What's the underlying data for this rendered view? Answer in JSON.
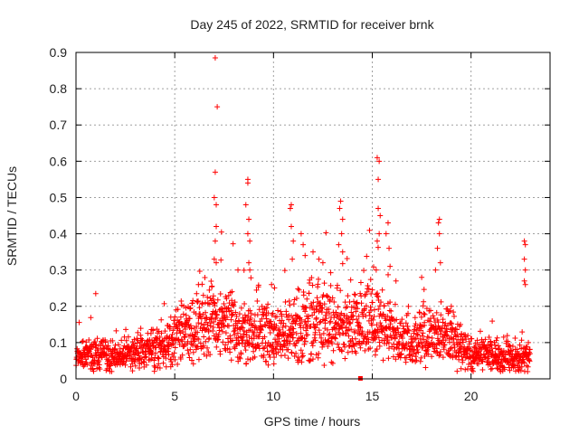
{
  "chart_data": {
    "type": "scatter",
    "title": "Day 245 of 2022, SRMTID for receiver brnk",
    "xlabel": "GPS time / hours",
    "ylabel": "SRMTID / TECUs",
    "xlim": [
      0,
      24
    ],
    "ylim": [
      0,
      0.9
    ],
    "x_ticks": [
      0,
      5,
      10,
      15,
      20
    ],
    "x_tick_labels": [
      "0",
      "5",
      "10",
      "15",
      "20"
    ],
    "y_ticks": [
      0,
      0.1,
      0.2,
      0.3,
      0.4,
      0.5,
      0.6,
      0.7,
      0.8,
      0.9
    ],
    "y_tick_labels": [
      "0",
      "0.1",
      "0.2",
      "0.3",
      "0.4",
      "0.5",
      "0.6",
      "0.7",
      "0.8",
      "0.9"
    ],
    "grid": true,
    "marker": "plus",
    "series_color": "#ff0000",
    "baseline_profile": [
      [
        0.0,
        0.07
      ],
      [
        1.0,
        0.06
      ],
      [
        2.0,
        0.055
      ],
      [
        3.0,
        0.065
      ],
      [
        4.0,
        0.08
      ],
      [
        4.8,
        0.09
      ],
      [
        5.3,
        0.12
      ],
      [
        6.0,
        0.14
      ],
      [
        7.0,
        0.15
      ],
      [
        8.0,
        0.13
      ],
      [
        9.0,
        0.12
      ],
      [
        10.0,
        0.11
      ],
      [
        11.0,
        0.13
      ],
      [
        12.0,
        0.16
      ],
      [
        13.0,
        0.14
      ],
      [
        14.0,
        0.13
      ],
      [
        15.0,
        0.15
      ],
      [
        16.0,
        0.11
      ],
      [
        17.0,
        0.09
      ],
      [
        18.0,
        0.12
      ],
      [
        19.0,
        0.1
      ],
      [
        20.0,
        0.06
      ],
      [
        21.0,
        0.06
      ],
      [
        22.0,
        0.055
      ],
      [
        23.0,
        0.06
      ]
    ],
    "spikes": [
      {
        "x": 7.05,
        "y": 0.885
      },
      {
        "x": 7.15,
        "y": 0.75
      },
      {
        "x": 7.05,
        "y": 0.57
      },
      {
        "x": 7.0,
        "y": 0.5
      },
      {
        "x": 7.1,
        "y": 0.48
      },
      {
        "x": 7.1,
        "y": 0.42
      },
      {
        "x": 7.05,
        "y": 0.38
      },
      {
        "x": 7.0,
        "y": 0.33
      },
      {
        "x": 7.1,
        "y": 0.32
      },
      {
        "x": 8.7,
        "y": 0.55
      },
      {
        "x": 8.7,
        "y": 0.54
      },
      {
        "x": 8.6,
        "y": 0.48
      },
      {
        "x": 8.75,
        "y": 0.44
      },
      {
        "x": 8.7,
        "y": 0.4
      },
      {
        "x": 8.8,
        "y": 0.38
      },
      {
        "x": 8.75,
        "y": 0.32
      },
      {
        "x": 8.8,
        "y": 0.3
      },
      {
        "x": 10.9,
        "y": 0.48
      },
      {
        "x": 10.85,
        "y": 0.47
      },
      {
        "x": 10.9,
        "y": 0.42
      },
      {
        "x": 11.0,
        "y": 0.38
      },
      {
        "x": 10.95,
        "y": 0.33
      },
      {
        "x": 11.4,
        "y": 0.4
      },
      {
        "x": 11.5,
        "y": 0.37
      },
      {
        "x": 11.6,
        "y": 0.34
      },
      {
        "x": 13.4,
        "y": 0.49
      },
      {
        "x": 13.35,
        "y": 0.47
      },
      {
        "x": 13.5,
        "y": 0.44
      },
      {
        "x": 13.45,
        "y": 0.4
      },
      {
        "x": 13.3,
        "y": 0.37
      },
      {
        "x": 13.5,
        "y": 0.35
      },
      {
        "x": 15.25,
        "y": 0.61
      },
      {
        "x": 15.35,
        "y": 0.6
      },
      {
        "x": 15.3,
        "y": 0.55
      },
      {
        "x": 15.3,
        "y": 0.47
      },
      {
        "x": 15.4,
        "y": 0.45
      },
      {
        "x": 15.35,
        "y": 0.4
      },
      {
        "x": 15.25,
        "y": 0.38
      },
      {
        "x": 15.8,
        "y": 0.43
      },
      {
        "x": 15.7,
        "y": 0.4
      },
      {
        "x": 15.85,
        "y": 0.36
      },
      {
        "x": 15.2,
        "y": 0.3
      },
      {
        "x": 15.9,
        "y": 0.31
      },
      {
        "x": 18.4,
        "y": 0.44
      },
      {
        "x": 18.35,
        "y": 0.43
      },
      {
        "x": 18.4,
        "y": 0.4
      },
      {
        "x": 18.3,
        "y": 0.36
      },
      {
        "x": 18.45,
        "y": 0.32
      },
      {
        "x": 18.2,
        "y": 0.3
      },
      {
        "x": 22.7,
        "y": 0.38
      },
      {
        "x": 22.75,
        "y": 0.37
      },
      {
        "x": 22.7,
        "y": 0.33
      },
      {
        "x": 22.75,
        "y": 0.3
      },
      {
        "x": 22.7,
        "y": 0.27
      },
      {
        "x": 22.75,
        "y": 0.26
      },
      {
        "x": 12.0,
        "y": 0.35
      },
      {
        "x": 12.3,
        "y": 0.33
      },
      {
        "x": 12.5,
        "y": 0.32
      },
      {
        "x": 17.5,
        "y": 0.28
      },
      {
        "x": 8.2,
        "y": 0.3
      },
      {
        "x": 6.2,
        "y": 0.26
      },
      {
        "x": 9.9,
        "y": 0.26
      },
      {
        "x": 1.0,
        "y": 0.235
      },
      {
        "x": 4.8,
        "y": 0.17
      },
      {
        "x": 16.2,
        "y": 0.27
      },
      {
        "x": 19.0,
        "y": 0.2
      }
    ],
    "marker_square": {
      "x": 14.4,
      "y": 0.0
    }
  }
}
